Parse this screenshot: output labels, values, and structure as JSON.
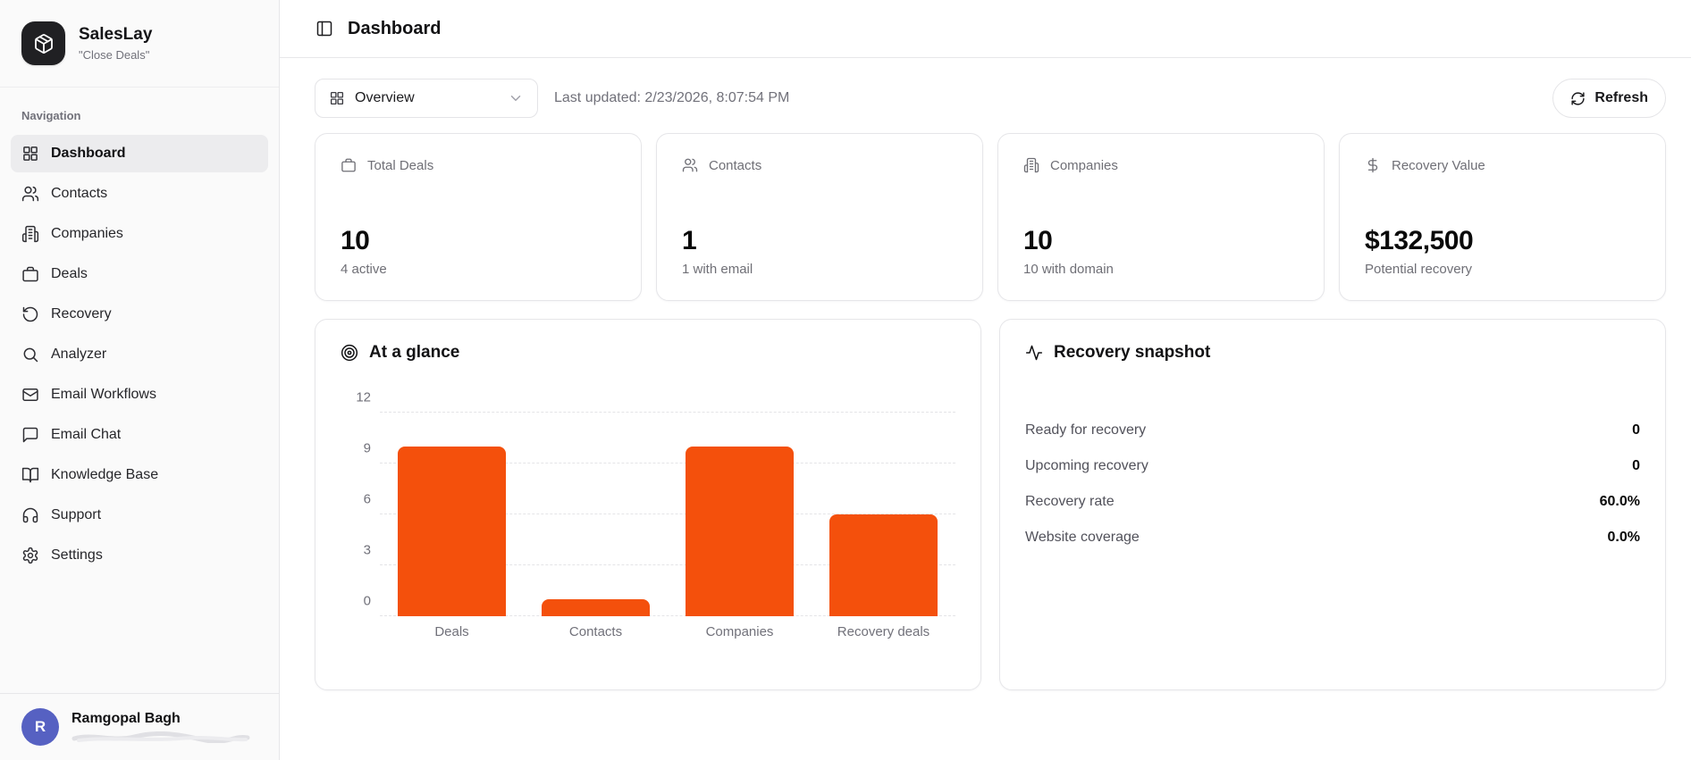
{
  "app": {
    "name": "SalesLay",
    "tagline": "\"Close Deals\"",
    "logo_icon": "package-icon"
  },
  "sidebar": {
    "section_label": "Navigation",
    "items": [
      {
        "label": "Dashboard",
        "icon": "layout-grid-icon",
        "active": true
      },
      {
        "label": "Contacts",
        "icon": "users-icon",
        "active": false
      },
      {
        "label": "Companies",
        "icon": "building-icon",
        "active": false
      },
      {
        "label": "Deals",
        "icon": "briefcase-icon",
        "active": false
      },
      {
        "label": "Recovery",
        "icon": "rotate-ccw-icon",
        "active": false
      },
      {
        "label": "Analyzer",
        "icon": "search-icon",
        "active": false
      },
      {
        "label": "Email Workflows",
        "icon": "mail-icon",
        "active": false
      },
      {
        "label": "Email Chat",
        "icon": "message-square-icon",
        "active": false
      },
      {
        "label": "Knowledge Base",
        "icon": "book-open-icon",
        "active": false
      },
      {
        "label": "Support",
        "icon": "headphones-icon",
        "active": false
      },
      {
        "label": "Settings",
        "icon": "gear-icon",
        "active": false
      }
    ],
    "user": {
      "name": "Ramgopal Bagh",
      "initial": "R",
      "email_redacted": true
    }
  },
  "header": {
    "title": "Dashboard",
    "toggle_icon": "panel-left-icon"
  },
  "toolbar": {
    "view_select": {
      "value": "Overview",
      "icon": "layout-grid-icon",
      "chevron": "chevron-down-icon"
    },
    "last_updated": "Last updated: 2/23/2026, 8:07:54 PM",
    "refresh_label": "Refresh",
    "refresh_icon": "refresh-icon"
  },
  "stats": [
    {
      "label": "Total Deals",
      "icon": "briefcase-icon",
      "value": "10",
      "sub": "4 active"
    },
    {
      "label": "Contacts",
      "icon": "users-icon",
      "value": "1",
      "sub": "1 with email"
    },
    {
      "label": "Companies",
      "icon": "building-icon",
      "value": "10",
      "sub": "10 with domain"
    },
    {
      "label": "Recovery Value",
      "icon": "dollar-icon",
      "value": "$132,500",
      "sub": "Potential recovery"
    }
  ],
  "glance": {
    "title": "At a glance",
    "icon": "target-icon"
  },
  "chart_data": {
    "type": "bar",
    "title": "At a glance",
    "categories": [
      "Deals",
      "Contacts",
      "Companies",
      "Recovery deals"
    ],
    "values": [
      10,
      1,
      10,
      6
    ],
    "xlabel": "",
    "ylabel": "",
    "ylim": [
      0,
      12
    ],
    "yticks": [
      0,
      3,
      6,
      9,
      12
    ],
    "bar_color": "#F4500C",
    "grid": "horizontal-dashed",
    "legend": "none"
  },
  "snapshot": {
    "title": "Recovery snapshot",
    "icon": "activity-icon",
    "rows": [
      {
        "label": "Ready for recovery",
        "value": "0"
      },
      {
        "label": "Upcoming recovery",
        "value": "0"
      },
      {
        "label": "Recovery rate",
        "value": "60.0%"
      },
      {
        "label": "Website coverage",
        "value": "0.0%"
      }
    ]
  },
  "colors": {
    "accent": "#F4500C",
    "avatar": "#5661C2",
    "logo_bg": "#202023",
    "sidebar_bg": "#FAFAFA"
  }
}
